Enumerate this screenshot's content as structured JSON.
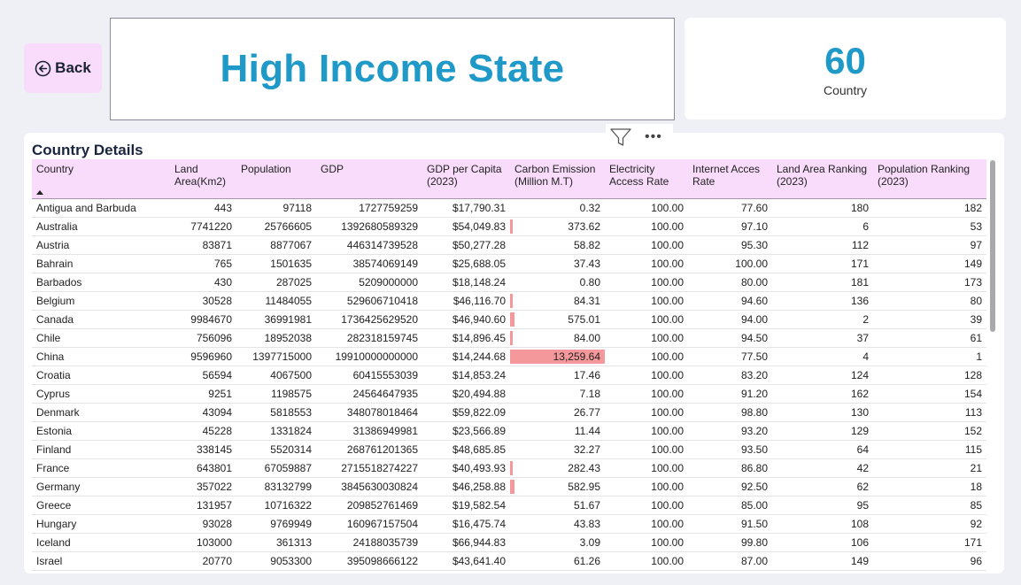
{
  "nav": {
    "back_label": "Back"
  },
  "header": {
    "title": "High Income State"
  },
  "kpi": {
    "value": "60",
    "label": "Country"
  },
  "visual_header": {
    "more_label": "•••"
  },
  "table": {
    "title": "Country Details",
    "columns": [
      "Country",
      "Land Area(Km2)",
      "Population",
      "GDP",
      "GDP per Capita (2023)",
      "Carbon Emission (Million M.T)",
      "Electricity Access Rate",
      "Internet Acces Rate",
      "Land Area Ranking (2023)",
      "Population Ranking (2023)"
    ],
    "sorted_column": "Country",
    "rows": [
      [
        "Antigua and Barbuda",
        "443",
        "97118",
        "1727759259",
        "$17,790.31",
        "0.32",
        "100.00",
        "77.60",
        "180",
        "182"
      ],
      [
        "Australia",
        "7741220",
        "25766605",
        "1392680589329",
        "$54,049.83",
        "373.62",
        "100.00",
        "97.10",
        "6",
        "53"
      ],
      [
        "Austria",
        "83871",
        "8877067",
        "446314739528",
        "$50,277.28",
        "58.82",
        "100.00",
        "95.30",
        "112",
        "97"
      ],
      [
        "Bahrain",
        "765",
        "1501635",
        "38574069149",
        "$25,688.05",
        "37.43",
        "100.00",
        "100.00",
        "171",
        "149"
      ],
      [
        "Barbados",
        "430",
        "287025",
        "5209000000",
        "$18,148.24",
        "0.80",
        "100.00",
        "80.00",
        "181",
        "173"
      ],
      [
        "Belgium",
        "30528",
        "11484055",
        "529606710418",
        "$46,116.70",
        "84.31",
        "100.00",
        "94.60",
        "136",
        "80"
      ],
      [
        "Canada",
        "9984670",
        "36991981",
        "1736425629520",
        "$46,940.60",
        "575.01",
        "100.00",
        "94.00",
        "2",
        "39"
      ],
      [
        "Chile",
        "756096",
        "18952038",
        "282318159745",
        "$14,896.45",
        "84.00",
        "100.00",
        "94.50",
        "37",
        "61"
      ],
      [
        "China",
        "9596960",
        "1397715000",
        "19910000000000",
        "$14,244.68",
        "13,259.64",
        "100.00",
        "77.50",
        "4",
        "1"
      ],
      [
        "Croatia",
        "56594",
        "4067500",
        "60415553039",
        "$14,853.24",
        "17.46",
        "100.00",
        "83.20",
        "124",
        "128"
      ],
      [
        "Cyprus",
        "9251",
        "1198575",
        "24564647935",
        "$20,494.88",
        "7.18",
        "100.00",
        "91.20",
        "162",
        "154"
      ],
      [
        "Denmark",
        "43094",
        "5818553",
        "348078018464",
        "$59,822.09",
        "26.77",
        "100.00",
        "98.80",
        "130",
        "113"
      ],
      [
        "Estonia",
        "45228",
        "1331824",
        "31386949981",
        "$23,566.89",
        "11.44",
        "100.00",
        "93.20",
        "129",
        "152"
      ],
      [
        "Finland",
        "338145",
        "5520314",
        "268761201365",
        "$48,685.85",
        "32.27",
        "100.00",
        "93.50",
        "64",
        "115"
      ],
      [
        "France",
        "643801",
        "67059887",
        "2715518274227",
        "$40,493.93",
        "282.43",
        "100.00",
        "86.80",
        "42",
        "21"
      ],
      [
        "Germany",
        "357022",
        "83132799",
        "3845630030824",
        "$46,258.88",
        "582.95",
        "100.00",
        "92.50",
        "62",
        "18"
      ],
      [
        "Greece",
        "131957",
        "10716322",
        "209852761469",
        "$19,582.54",
        "51.67",
        "100.00",
        "85.00",
        "95",
        "85"
      ],
      [
        "Hungary",
        "93028",
        "9769949",
        "160967157504",
        "$16,475.74",
        "43.83",
        "100.00",
        "91.50",
        "108",
        "92"
      ],
      [
        "Iceland",
        "103000",
        "361313",
        "24188035739",
        "$66,944.83",
        "3.09",
        "100.00",
        "99.80",
        "106",
        "171"
      ],
      [
        "Israel",
        "20770",
        "9053300",
        "395098666122",
        "$43,641.40",
        "61.26",
        "100.00",
        "87.00",
        "149",
        "96"
      ]
    ],
    "carbon_bar_max": 13259.64,
    "carbon_bar_color": "#f5989b"
  },
  "colors": {
    "accent": "#1f99c8",
    "header_bg": "#f9dcfb",
    "back_bg": "#f9dcfb"
  }
}
